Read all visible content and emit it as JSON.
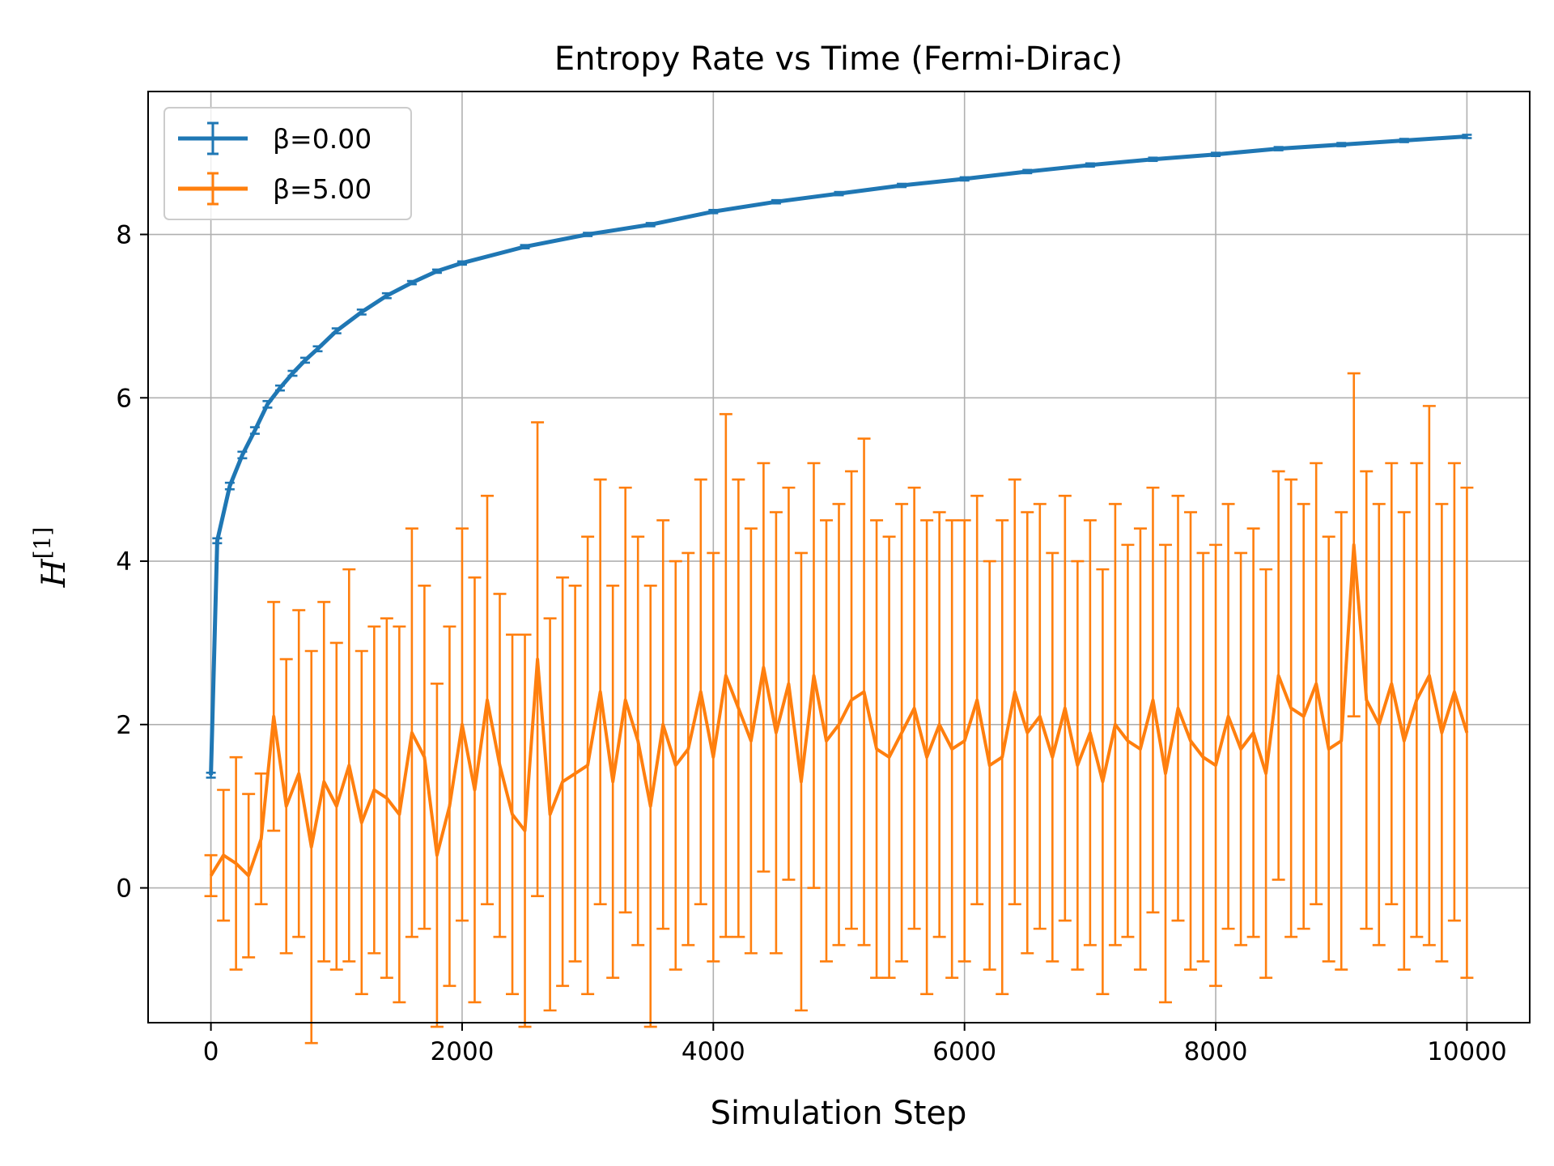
{
  "chart_data": {
    "type": "line",
    "title": "Entropy Rate vs Time (Fermi-Dirac)",
    "xlabel": "Simulation Step",
    "ylabel": "H",
    "ylabel_superscript": "[1]",
    "xlim": [
      -500,
      10500
    ],
    "ylim": [
      -1.65,
      9.75
    ],
    "xticks": [
      0,
      2000,
      4000,
      6000,
      8000,
      10000
    ],
    "yticks": [
      0,
      2,
      4,
      6,
      8
    ],
    "grid": true,
    "legend_position": "top-left",
    "error_bars": true,
    "series": [
      {
        "name": "β=0.00",
        "color": "#1f77b4",
        "x": [
          0,
          50,
          150,
          250,
          350,
          450,
          550,
          650,
          750,
          850,
          1000,
          1200,
          1400,
          1600,
          1800,
          2000,
          2500,
          3000,
          3500,
          4000,
          4500,
          5000,
          5500,
          6000,
          6500,
          7000,
          7500,
          8000,
          8500,
          9000,
          9500,
          10000
        ],
        "y": [
          1.38,
          4.25,
          4.92,
          5.3,
          5.6,
          5.92,
          6.12,
          6.3,
          6.46,
          6.6,
          6.82,
          7.05,
          7.25,
          7.41,
          7.55,
          7.65,
          7.85,
          8.0,
          8.12,
          8.28,
          8.4,
          8.5,
          8.6,
          8.68,
          8.77,
          8.85,
          8.92,
          8.98,
          9.05,
          9.1,
          9.15,
          9.2
        ],
        "err": [
          0.03,
          0.03,
          0.04,
          0.04,
          0.04,
          0.04,
          0.03,
          0.03,
          0.03,
          0.03,
          0.03,
          0.03,
          0.03,
          0.02,
          0.02,
          0.02,
          0.02,
          0.02,
          0.02,
          0.02,
          0.02,
          0.02,
          0.02,
          0.02,
          0.02,
          0.02,
          0.02,
          0.02,
          0.02,
          0.02,
          0.02,
          0.02
        ]
      },
      {
        "name": "β=5.00",
        "color": "#ff7f0e",
        "x": [
          0,
          100,
          200,
          300,
          400,
          500,
          600,
          700,
          800,
          900,
          1000,
          1100,
          1200,
          1300,
          1400,
          1500,
          1600,
          1700,
          1800,
          1900,
          2000,
          2100,
          2200,
          2300,
          2400,
          2500,
          2600,
          2700,
          2800,
          2900,
          3000,
          3100,
          3200,
          3300,
          3400,
          3500,
          3600,
          3700,
          3800,
          3900,
          4000,
          4100,
          4200,
          4300,
          4400,
          4500,
          4600,
          4700,
          4800,
          4900,
          5000,
          5100,
          5200,
          5300,
          5400,
          5500,
          5600,
          5700,
          5800,
          5900,
          6000,
          6100,
          6200,
          6300,
          6400,
          6500,
          6600,
          6700,
          6800,
          6900,
          7000,
          7100,
          7200,
          7300,
          7400,
          7500,
          7600,
          7700,
          7800,
          7900,
          8000,
          8100,
          8200,
          8300,
          8400,
          8500,
          8600,
          8700,
          8800,
          8900,
          9000,
          9100,
          9200,
          9300,
          9400,
          9500,
          9600,
          9700,
          9800,
          9900,
          10000
        ],
        "y": [
          0.15,
          0.4,
          0.3,
          0.15,
          0.6,
          2.1,
          1.0,
          1.4,
          0.5,
          1.3,
          1.0,
          1.5,
          0.8,
          1.2,
          1.1,
          0.9,
          1.9,
          1.6,
          0.4,
          1.0,
          2.0,
          1.2,
          2.3,
          1.5,
          0.9,
          0.7,
          2.8,
          0.9,
          1.3,
          1.4,
          1.5,
          2.4,
          1.3,
          2.3,
          1.8,
          1.0,
          2.0,
          1.5,
          1.7,
          2.4,
          1.6,
          2.6,
          2.2,
          1.8,
          2.7,
          1.9,
          2.5,
          1.3,
          2.6,
          1.8,
          2.0,
          2.3,
          2.4,
          1.7,
          1.6,
          1.9,
          2.2,
          1.6,
          2.0,
          1.7,
          1.8,
          2.3,
          1.5,
          1.6,
          2.4,
          1.9,
          2.1,
          1.6,
          2.2,
          1.5,
          1.9,
          1.3,
          2.0,
          1.8,
          1.7,
          2.3,
          1.4,
          2.2,
          1.8,
          1.6,
          1.5,
          2.1,
          1.7,
          1.9,
          1.4,
          2.6,
          2.2,
          2.1,
          2.5,
          1.7,
          1.8,
          4.2,
          2.3,
          2.0,
          2.5,
          1.8,
          2.3,
          2.6,
          1.9,
          2.4,
          1.9
        ],
        "err": [
          0.25,
          0.8,
          1.3,
          1.0,
          0.8,
          1.4,
          1.8,
          2.0,
          2.4,
          2.2,
          2.0,
          2.4,
          2.1,
          2.0,
          2.2,
          2.3,
          2.5,
          2.1,
          2.1,
          2.2,
          2.4,
          2.6,
          2.5,
          2.1,
          2.2,
          2.4,
          2.9,
          2.4,
          2.5,
          2.3,
          2.8,
          2.6,
          2.4,
          2.6,
          2.5,
          2.7,
          2.5,
          2.5,
          2.4,
          2.6,
          2.5,
          3.2,
          2.8,
          2.6,
          2.5,
          2.7,
          2.4,
          2.8,
          2.6,
          2.7,
          2.7,
          2.8,
          3.1,
          2.8,
          2.7,
          2.8,
          2.7,
          2.9,
          2.6,
          2.8,
          2.7,
          2.5,
          2.5,
          2.9,
          2.6,
          2.7,
          2.6,
          2.5,
          2.6,
          2.5,
          2.6,
          2.6,
          2.7,
          2.4,
          2.7,
          2.6,
          2.8,
          2.6,
          2.8,
          2.5,
          2.7,
          2.6,
          2.4,
          2.5,
          2.5,
          2.5,
          2.8,
          2.6,
          2.7,
          2.6,
          2.8,
          2.1,
          2.8,
          2.7,
          2.7,
          2.8,
          2.9,
          3.3,
          2.8,
          2.8,
          3.0
        ]
      }
    ]
  }
}
